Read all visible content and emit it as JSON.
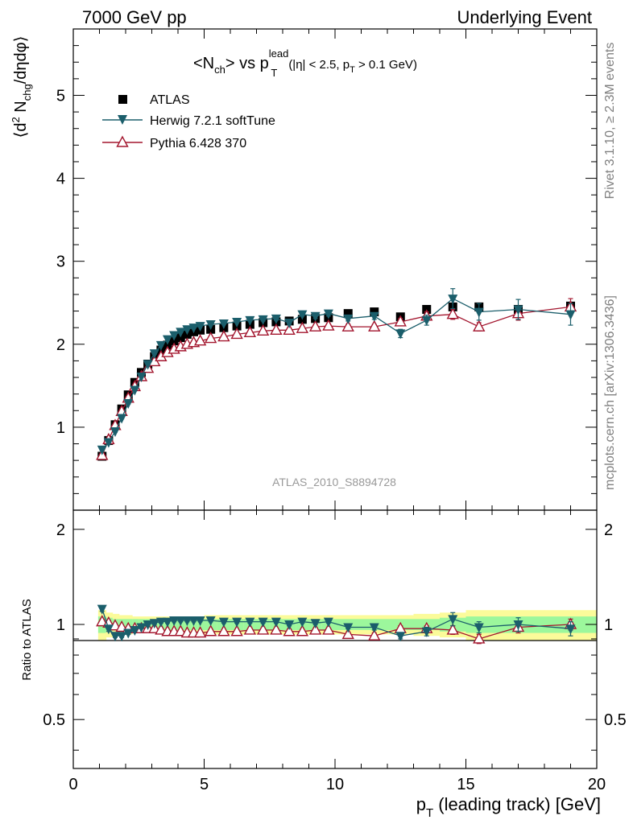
{
  "header": {
    "left": "7000 GeV pp",
    "right": "Underlying Event"
  },
  "side": {
    "rivet": "Rivet 3.1.10, ≥ 2.3M events",
    "mcplots": "mcplots.cern.ch [arXiv:1306.3436]"
  },
  "watermark": "ATLAS_2010_S8894728",
  "title": {
    "n_open": "<N",
    "n_sub": "ch",
    "vs": "> vs p",
    "p_sup": "lead",
    "p_sub": "T",
    "cut_a": "(|η| < 2.5, p",
    "cut_sub": "T",
    "cut_b": " > 0.1 GeV)"
  },
  "yaxis_main": {
    "p1": "⟨d",
    "sup2": "2",
    "p2": " N",
    "sub": "chg",
    "p3": "/dηdφ⟩"
  },
  "yaxis_ratio": "Ratio to ATLAS",
  "xaxis": {
    "p": "p",
    "sub": "T",
    "rest": " (leading track) [GeV]"
  },
  "colors": {
    "atlas": "#000000",
    "herwig": "#1b5e6b",
    "pythia": "#a3162e",
    "band_inner": "#9cf79c",
    "band_outer": "#fbfb9a"
  },
  "chart_data": [
    {
      "type": "scatter",
      "title": "<Nch> vs pT lead (|η| < 2.5, pT > 0.1 GeV)",
      "xlabel": "pT (leading track) [GeV]",
      "ylabel": "⟨d2 Nchg/dηdφ⟩",
      "xlim": [
        0,
        20
      ],
      "ylim": [
        0,
        5.8
      ],
      "xticks": [
        0,
        5,
        10,
        15,
        20
      ],
      "yticks": [
        1,
        2,
        3,
        4,
        5
      ],
      "legend_position": "top-left",
      "x": [
        1.1,
        1.35,
        1.6,
        1.85,
        2.1,
        2.35,
        2.6,
        2.85,
        3.1,
        3.35,
        3.6,
        3.85,
        4.1,
        4.35,
        4.6,
        4.85,
        5.25,
        5.75,
        6.25,
        6.75,
        7.25,
        7.75,
        8.25,
        8.75,
        9.25,
        9.75,
        10.5,
        11.5,
        12.5,
        13.5,
        14.5,
        15.5,
        17.0,
        19.0
      ],
      "series": [
        {
          "name": "ATLAS",
          "marker": "square",
          "values": [
            0.65,
            0.84,
            1.03,
            1.22,
            1.39,
            1.54,
            1.66,
            1.76,
            1.85,
            1.93,
            1.99,
            2.04,
            2.08,
            2.12,
            2.15,
            2.17,
            2.18,
            2.2,
            2.22,
            2.24,
            2.26,
            2.27,
            2.28,
            2.3,
            2.31,
            2.32,
            2.37,
            2.39,
            2.33,
            2.42,
            2.45,
            2.45,
            2.42,
            2.46
          ]
        },
        {
          "name": "Herwig 7.2.1 softTune",
          "marker": "triangle-down-filled",
          "values": [
            0.73,
            0.82,
            0.95,
            1.11,
            1.29,
            1.45,
            1.61,
            1.76,
            1.89,
            1.99,
            2.06,
            2.11,
            2.15,
            2.18,
            2.2,
            2.22,
            2.24,
            2.25,
            2.27,
            2.29,
            2.3,
            2.31,
            2.26,
            2.36,
            2.34,
            2.37,
            2.31,
            2.34,
            2.13,
            2.29,
            2.55,
            2.39,
            2.42,
            2.36
          ],
          "errors": [
            0.01,
            0.01,
            0.01,
            0.01,
            0.01,
            0.01,
            0.01,
            0.01,
            0.01,
            0.01,
            0.01,
            0.01,
            0.01,
            0.01,
            0.01,
            0.01,
            0.01,
            0.01,
            0.01,
            0.01,
            0.02,
            0.02,
            0.02,
            0.02,
            0.03,
            0.03,
            0.03,
            0.04,
            0.05,
            0.06,
            0.12,
            0.1,
            0.12,
            0.13
          ]
        },
        {
          "name": "Pythia 6.428 370",
          "marker": "triangle-up-open",
          "values": [
            0.66,
            0.85,
            1.02,
            1.19,
            1.35,
            1.49,
            1.61,
            1.71,
            1.79,
            1.85,
            1.9,
            1.94,
            1.97,
            2.0,
            2.02,
            2.04,
            2.07,
            2.09,
            2.12,
            2.14,
            2.16,
            2.17,
            2.17,
            2.19,
            2.21,
            2.22,
            2.21,
            2.21,
            2.27,
            2.34,
            2.36,
            2.21,
            2.37,
            2.45
          ],
          "errors": [
            0.01,
            0.01,
            0.01,
            0.01,
            0.01,
            0.01,
            0.01,
            0.01,
            0.01,
            0.01,
            0.01,
            0.01,
            0.01,
            0.01,
            0.01,
            0.01,
            0.01,
            0.01,
            0.01,
            0.01,
            0.02,
            0.02,
            0.02,
            0.02,
            0.02,
            0.02,
            0.03,
            0.03,
            0.04,
            0.05,
            0.06,
            0.05,
            0.08,
            0.1
          ]
        }
      ]
    },
    {
      "type": "scatter",
      "title": "Ratio panel",
      "xlabel": "pT (leading track) [GeV]",
      "ylabel": "Ratio to ATLAS",
      "xlim": [
        0,
        20
      ],
      "ylim": [
        0.35,
        2.3
      ],
      "yticks": [
        0.5,
        1,
        2
      ],
      "reference_line": 1,
      "band_x_edges": [
        0.95,
        1.25,
        1.5,
        1.75,
        2.0,
        2.25,
        2.5,
        2.75,
        3.0,
        3.25,
        3.5,
        3.75,
        4.0,
        4.25,
        4.5,
        4.75,
        5.0,
        5.5,
        6.0,
        6.5,
        7.0,
        7.5,
        8.0,
        8.5,
        9.0,
        9.5,
        10.0,
        11.0,
        12.0,
        13.0,
        14.0,
        15.0,
        16.0,
        18.0,
        20.0
      ],
      "band_inner_halfwidth": [
        0.06,
        0.05,
        0.04,
        0.04,
        0.04,
        0.04,
        0.04,
        0.04,
        0.04,
        0.04,
        0.04,
        0.04,
        0.04,
        0.04,
        0.04,
        0.04,
        0.04,
        0.04,
        0.04,
        0.04,
        0.04,
        0.04,
        0.04,
        0.04,
        0.04,
        0.04,
        0.04,
        0.04,
        0.04,
        0.04,
        0.05,
        0.06,
        0.06,
        0.06
      ],
      "band_outer_halfwidth": [
        0.11,
        0.09,
        0.08,
        0.07,
        0.07,
        0.06,
        0.06,
        0.06,
        0.06,
        0.06,
        0.06,
        0.06,
        0.06,
        0.06,
        0.06,
        0.06,
        0.07,
        0.07,
        0.07,
        0.07,
        0.07,
        0.07,
        0.07,
        0.07,
        0.07,
        0.07,
        0.07,
        0.07,
        0.07,
        0.08,
        0.09,
        0.11,
        0.11,
        0.11
      ],
      "series": [
        {
          "name": "Herwig 7.2.1 softTune",
          "values": [
            1.12,
            0.97,
            0.92,
            0.92,
            0.94,
            0.96,
            0.98,
            1.0,
            1.01,
            1.02,
            1.02,
            1.03,
            1.03,
            1.03,
            1.03,
            1.03,
            1.03,
            1.02,
            1.02,
            1.02,
            1.02,
            1.02,
            1.0,
            1.02,
            1.01,
            1.02,
            0.98,
            0.98,
            0.92,
            0.95,
            1.04,
            0.98,
            1.0,
            0.97
          ],
          "errors": [
            0.02,
            0.02,
            0.01,
            0.01,
            0.01,
            0.01,
            0.01,
            0.01,
            0.01,
            0.01,
            0.01,
            0.01,
            0.01,
            0.01,
            0.01,
            0.01,
            0.01,
            0.01,
            0.01,
            0.01,
            0.01,
            0.01,
            0.01,
            0.01,
            0.01,
            0.01,
            0.01,
            0.02,
            0.02,
            0.03,
            0.05,
            0.04,
            0.05,
            0.05
          ]
        },
        {
          "name": "Pythia 6.428 370",
          "values": [
            1.02,
            1.01,
            0.99,
            0.98,
            0.97,
            0.97,
            0.97,
            0.97,
            0.97,
            0.96,
            0.95,
            0.95,
            0.95,
            0.94,
            0.94,
            0.94,
            0.95,
            0.95,
            0.95,
            0.96,
            0.96,
            0.96,
            0.95,
            0.95,
            0.96,
            0.96,
            0.93,
            0.92,
            0.97,
            0.97,
            0.96,
            0.9,
            0.98,
            1.0
          ],
          "errors": [
            0.02,
            0.02,
            0.01,
            0.01,
            0.01,
            0.01,
            0.01,
            0.01,
            0.01,
            0.01,
            0.01,
            0.01,
            0.01,
            0.01,
            0.01,
            0.01,
            0.01,
            0.01,
            0.01,
            0.01,
            0.01,
            0.01,
            0.01,
            0.01,
            0.01,
            0.01,
            0.01,
            0.02,
            0.02,
            0.02,
            0.03,
            0.03,
            0.04,
            0.04
          ]
        }
      ]
    }
  ]
}
